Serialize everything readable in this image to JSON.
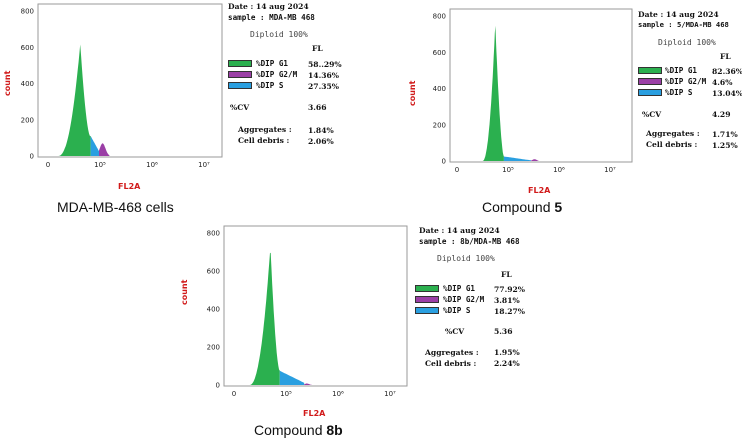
{
  "colors": {
    "g1": "#2bb04f",
    "g2m": "#9b3fa6",
    "s": "#2a9fe0",
    "axis_label": "#d11a1a"
  },
  "panels": [
    {
      "id": "p1",
      "caption": "MDA-MB-468 cells",
      "caption_bold": "",
      "ylabel": "count",
      "xlabel": "FL2A",
      "y_ticks": [
        "800",
        "600",
        "400",
        "200",
        "0"
      ],
      "x_ticks": [
        "0",
        "10⁵",
        "10⁶",
        "10⁷"
      ],
      "stats": {
        "date": "Date : 14 aug 2024",
        "sample": "sample : MDA-MB 468",
        "diploid": "Diploid 100%",
        "fl": "FL",
        "g1_label": "%DIP G1",
        "g1_value": "58..29%",
        "g2m_label": "%DIP G2/M",
        "g2m_value": "14.36%",
        "s_label": "%DIP S",
        "s_value": "27.35%",
        "cv_label": "%CV",
        "cv_value": "3.66",
        "agg_label": "Aggregates :",
        "agg_value": "1.84%",
        "debris_label": "Cell debris :",
        "debris_value": "2.06%"
      }
    },
    {
      "id": "p2",
      "caption": "Compound ",
      "caption_bold": "5",
      "ylabel": "count",
      "xlabel": "FL2A",
      "y_ticks": [
        "800",
        "600",
        "400",
        "200",
        "0"
      ],
      "x_ticks": [
        "0",
        "10⁵",
        "10⁶",
        "10⁷"
      ],
      "stats": {
        "date": "Date : 14 aug 2024",
        "sample": "sample : 5/MDA-MB 468",
        "diploid": "Diploid 100%",
        "fl": "FL",
        "g1_label": "%DIP G1",
        "g1_value": "82.36%",
        "g2m_label": "%DIP G2/M",
        "g2m_value": "4.6%",
        "s_label": "%DIP S",
        "s_value": "13.04%",
        "cv_label": "%CV",
        "cv_value": "4.29",
        "agg_label": "Aggregates :",
        "agg_value": "1.71%",
        "debris_label": "Cell debris :",
        "debris_value": "1.25%"
      }
    },
    {
      "id": "p3",
      "caption": "Compound ",
      "caption_bold": "8b",
      "ylabel": "count",
      "xlabel": "FL2A",
      "y_ticks": [
        "800",
        "600",
        "400",
        "200",
        "0"
      ],
      "x_ticks": [
        "0",
        "10⁵",
        "10⁶",
        "10⁷"
      ],
      "stats": {
        "date": "Date : 14 aug 2024",
        "sample": "sample : 8b/MDA-MB 468",
        "diploid": "Diploid 100%",
        "fl": "FL",
        "g1_label": "%DIP G1",
        "g1_value": "77.92%",
        "g2m_label": "%DIP G2/M",
        "g2m_value": "3.81%",
        "s_label": "%DIP S",
        "s_value": "18.27%",
        "cv_label": "%CV",
        "cv_value": "5.36",
        "agg_label": "Aggregates :",
        "agg_value": "1.95%",
        "debris_label": "Cell debris :",
        "debris_value": "2.24%"
      }
    }
  ],
  "chart_data": [
    {
      "type": "area",
      "title": "MDA-MB-468 cells",
      "xlabel": "FL2A",
      "ylabel": "count",
      "ylim": [
        0,
        800
      ],
      "x_log_range": [
        4,
        7
      ],
      "series": [
        {
          "name": "%DIP G1",
          "peak_x": 4.62,
          "peak_y": 620,
          "x_start": 4.2,
          "x_end": 4.82
        },
        {
          "name": "%DIP S",
          "x_start": 4.82,
          "x_end": 5.0,
          "level": 110
        },
        {
          "name": "%DIP G2/M",
          "peak_x": 5.05,
          "peak_y": 70,
          "x_start": 4.98,
          "x_end": 5.18
        }
      ]
    },
    {
      "type": "area",
      "title": "Compound 5",
      "xlabel": "FL2A",
      "ylabel": "count",
      "ylim": [
        0,
        800
      ],
      "x_log_range": [
        4,
        7
      ],
      "series": [
        {
          "name": "%DIP G1",
          "peak_x": 4.75,
          "peak_y": 760,
          "x_start": 4.5,
          "x_end": 4.92
        },
        {
          "name": "%DIP S",
          "x_start": 4.92,
          "x_end": 5.45,
          "level": 25
        },
        {
          "name": "%DIP G2/M",
          "peak_x": 5.52,
          "peak_y": 10,
          "x_start": 5.45,
          "x_end": 5.6
        }
      ]
    },
    {
      "type": "area",
      "title": "Compound 8b",
      "xlabel": "FL2A",
      "ylabel": "count",
      "ylim": [
        0,
        800
      ],
      "x_log_range": [
        4,
        7
      ],
      "series": [
        {
          "name": "%DIP G1",
          "peak_x": 4.7,
          "peak_y": 730,
          "x_start": 4.3,
          "x_end": 4.88
        },
        {
          "name": "%DIP S",
          "x_start": 4.88,
          "x_end": 5.35,
          "level": 75
        },
        {
          "name": "%DIP G2/M",
          "peak_x": 5.4,
          "peak_y": 8,
          "x_start": 5.35,
          "x_end": 5.5
        }
      ]
    }
  ]
}
